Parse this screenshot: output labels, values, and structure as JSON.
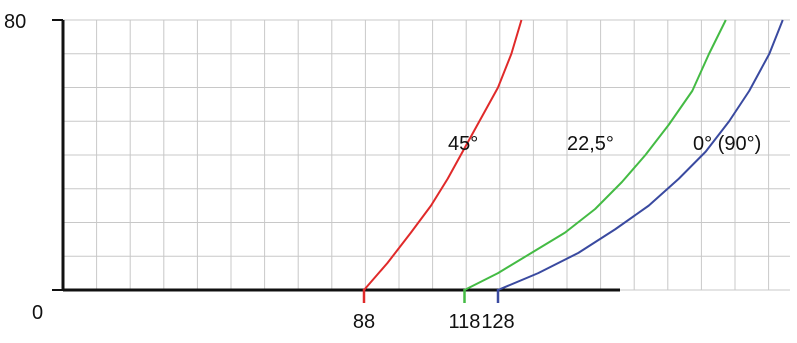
{
  "chart_data": {
    "type": "line",
    "title": "",
    "xlabel": "",
    "ylabel": "",
    "ylim": [
      0,
      80
    ],
    "grid": true,
    "y_ticks": [
      {
        "value": 0,
        "label": "0"
      },
      {
        "value": 80,
        "label": "80"
      }
    ],
    "x_ticks": [
      {
        "value": 88,
        "label": "88",
        "color": "#e02a2a"
      },
      {
        "value": 118,
        "label": "118",
        "color": "#44bb44"
      },
      {
        "value": 128,
        "label": "128",
        "color": "#3a4aa0"
      }
    ],
    "series": [
      {
        "name": "45°",
        "color": "#e02a2a",
        "points": [
          [
            88,
            0
          ],
          [
            95,
            8
          ],
          [
            102,
            17
          ],
          [
            108,
            25
          ],
          [
            113,
            33
          ],
          [
            118,
            42
          ],
          [
            123,
            51
          ],
          [
            128,
            60
          ],
          [
            132,
            70
          ],
          [
            135,
            80
          ]
        ]
      },
      {
        "name": "22,5°",
        "color": "#44bb44",
        "points": [
          [
            118,
            0
          ],
          [
            128,
            5
          ],
          [
            138,
            11
          ],
          [
            148,
            17
          ],
          [
            157,
            24
          ],
          [
            165,
            32
          ],
          [
            172,
            40
          ],
          [
            179,
            49
          ],
          [
            186,
            59
          ],
          [
            191,
            70
          ],
          [
            196,
            80
          ]
        ]
      },
      {
        "name": "0° (90°)",
        "color": "#3a4aa0",
        "points": [
          [
            128,
            0
          ],
          [
            140,
            5
          ],
          [
            152,
            11
          ],
          [
            163,
            18
          ],
          [
            173,
            25
          ],
          [
            182,
            33
          ],
          [
            190,
            41
          ],
          [
            197,
            50
          ],
          [
            203,
            59
          ],
          [
            209,
            70
          ],
          [
            213,
            80
          ]
        ]
      }
    ]
  }
}
